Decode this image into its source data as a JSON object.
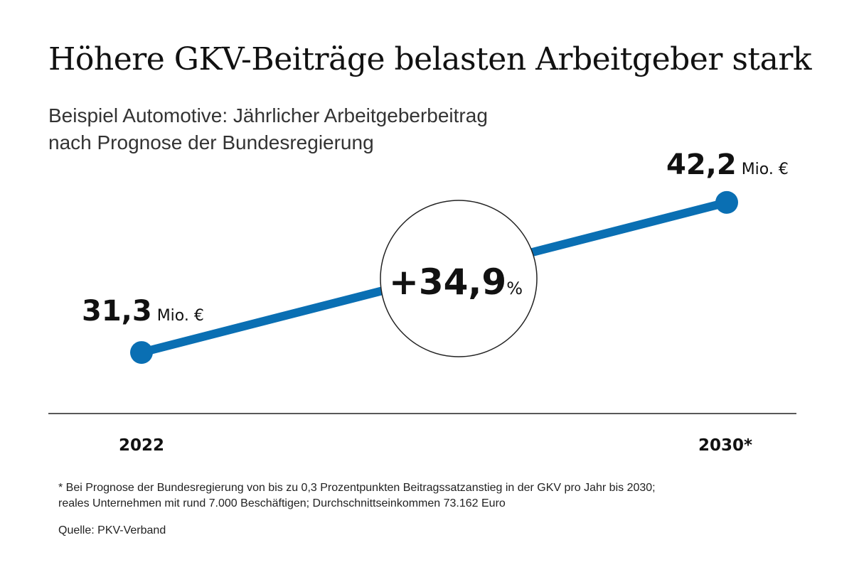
{
  "title": "Höhere GKV-Beiträge belasten Arbeitgeber stark",
  "subtitle": {
    "line1": "Beispiel Automotive: Jährlicher Arbeitgeberbeitrag",
    "line2": "nach Prognose der Bundesregierung"
  },
  "colors": {
    "series": "#0a6fb3",
    "text": "#111111",
    "axis": "#222222"
  },
  "chart_data": {
    "type": "line",
    "x": [
      "2022",
      "2030*"
    ],
    "series": [
      {
        "values": [
          31.3,
          42.2
        ],
        "value_labels": [
          "31,3",
          "42,2"
        ],
        "unit": "Mio. €"
      }
    ],
    "change": {
      "sign": "+",
      "value": "34,9",
      "unit": "%"
    },
    "ylim": [
      28,
      44
    ],
    "grid": false,
    "legend": "none"
  },
  "footnote": {
    "line1": "* Bei Prognose der Bundesregierung von bis zu 0,3 Prozentpunkten Beitragssatzanstieg in der GKV pro Jahr bis 2030;",
    "line2": "reales Unternehmen mit rund 7.000 Beschäftigen; Durchschnittseinkommen 73.162 Euro"
  },
  "source": "Quelle: PKV-Verband"
}
